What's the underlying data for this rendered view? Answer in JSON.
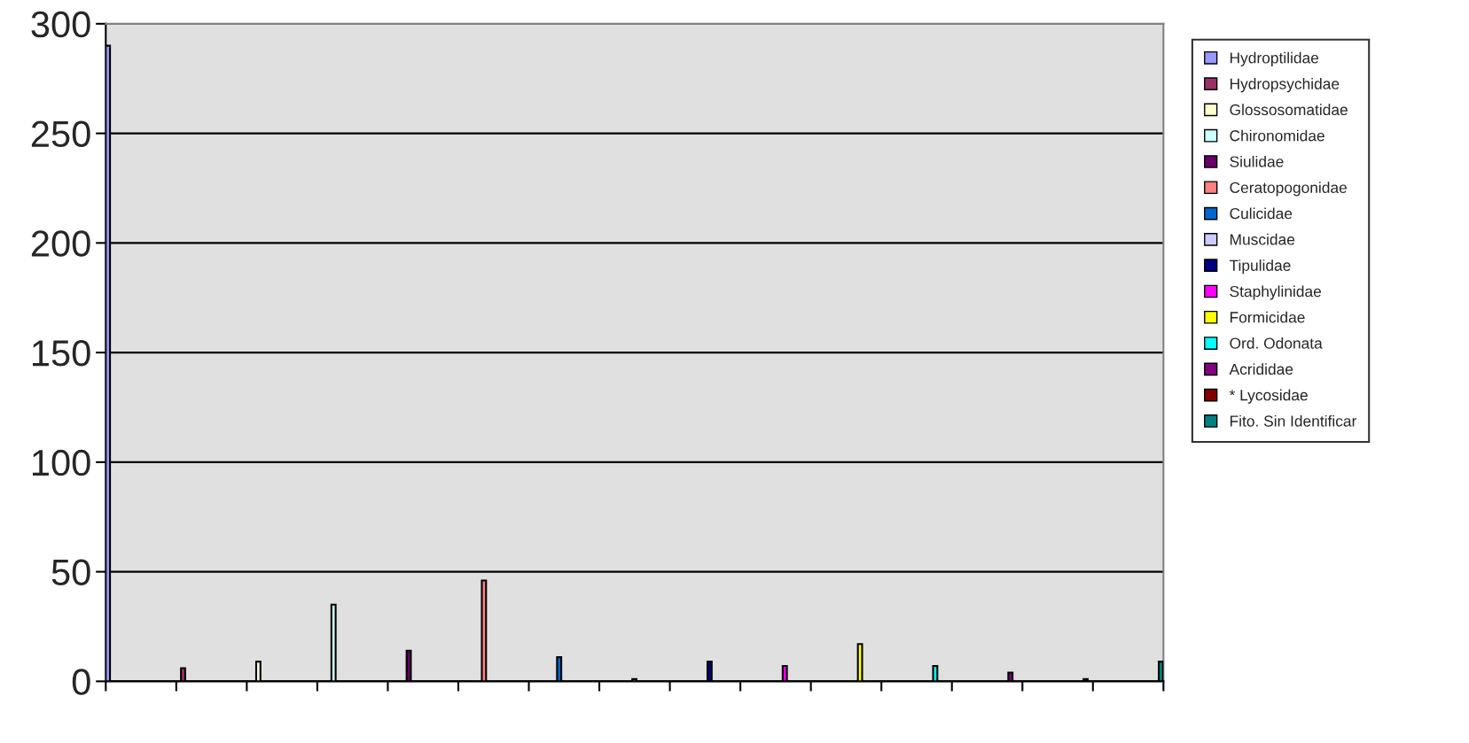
{
  "chart_data": {
    "type": "bar",
    "categories": [
      null,
      null,
      null,
      null,
      null,
      null,
      null,
      null,
      null,
      null,
      null,
      null,
      null,
      null,
      null
    ],
    "series": [
      {
        "name": "Hydroptilidae",
        "color": "#9999ff",
        "values": [
          290,
          null,
          null,
          null,
          null,
          null,
          null,
          null,
          null,
          null,
          null,
          null,
          null,
          null,
          null
        ]
      },
      {
        "name": "Hydropsychidae",
        "color": "#993366",
        "values": [
          null,
          6,
          null,
          null,
          null,
          null,
          null,
          null,
          null,
          null,
          null,
          null,
          null,
          null,
          null
        ]
      },
      {
        "name": "Glossosomatidae",
        "color": "#ffffcc",
        "values": [
          null,
          null,
          9,
          null,
          null,
          null,
          null,
          null,
          null,
          null,
          null,
          null,
          null,
          null,
          null
        ]
      },
      {
        "name": "Chironomidae",
        "color": "#ccffff",
        "values": [
          null,
          null,
          null,
          35,
          null,
          null,
          null,
          null,
          null,
          null,
          null,
          null,
          null,
          null,
          null
        ]
      },
      {
        "name": "Siulidae",
        "color": "#660066",
        "values": [
          null,
          null,
          null,
          null,
          14,
          null,
          null,
          null,
          null,
          null,
          null,
          null,
          null,
          null,
          null
        ]
      },
      {
        "name": "Ceratopogonidae",
        "color": "#ff8080",
        "values": [
          null,
          null,
          null,
          null,
          null,
          46,
          null,
          null,
          null,
          null,
          null,
          null,
          null,
          null,
          null
        ]
      },
      {
        "name": "Culicidae",
        "color": "#0066cc",
        "values": [
          null,
          null,
          null,
          null,
          null,
          null,
          11,
          null,
          null,
          null,
          null,
          null,
          null,
          null,
          null
        ]
      },
      {
        "name": "Muscidae",
        "color": "#ccccff",
        "values": [
          null,
          null,
          null,
          null,
          null,
          null,
          null,
          1,
          null,
          null,
          null,
          null,
          null,
          null,
          null
        ]
      },
      {
        "name": "Tipulidae",
        "color": "#000080",
        "values": [
          null,
          null,
          null,
          null,
          null,
          null,
          null,
          null,
          9,
          null,
          null,
          null,
          null,
          null,
          null
        ]
      },
      {
        "name": "Staphylinidae",
        "color": "#ff00ff",
        "values": [
          null,
          null,
          null,
          null,
          null,
          null,
          null,
          null,
          null,
          7,
          null,
          null,
          null,
          null,
          null
        ]
      },
      {
        "name": "Formicidae",
        "color": "#ffff00",
        "values": [
          null,
          null,
          null,
          null,
          null,
          null,
          null,
          null,
          null,
          null,
          17,
          null,
          null,
          null,
          null
        ]
      },
      {
        "name": "Ord. Odonata",
        "color": "#00ffff",
        "values": [
          null,
          null,
          null,
          null,
          null,
          null,
          null,
          null,
          null,
          null,
          null,
          7,
          null,
          null,
          null
        ]
      },
      {
        "name": "Acrididae",
        "color": "#800080",
        "values": [
          null,
          null,
          null,
          null,
          null,
          null,
          null,
          null,
          null,
          null,
          null,
          null,
          4,
          null,
          null
        ]
      },
      {
        "name": "* Lycosidae",
        "color": "#800000",
        "values": [
          null,
          null,
          null,
          null,
          null,
          null,
          null,
          null,
          null,
          null,
          null,
          null,
          null,
          1,
          null
        ]
      },
      {
        "name": "Fito. Sin Identificar",
        "color": "#008080",
        "values": [
          null,
          null,
          null,
          null,
          null,
          null,
          null,
          null,
          null,
          null,
          null,
          null,
          null,
          null,
          9
        ]
      }
    ],
    "ylim": [
      0,
      300
    ],
    "yticks": [
      0,
      50,
      100,
      150,
      200,
      250,
      300
    ],
    "grid": "y",
    "legend": "right",
    "tick_labels": "y"
  }
}
